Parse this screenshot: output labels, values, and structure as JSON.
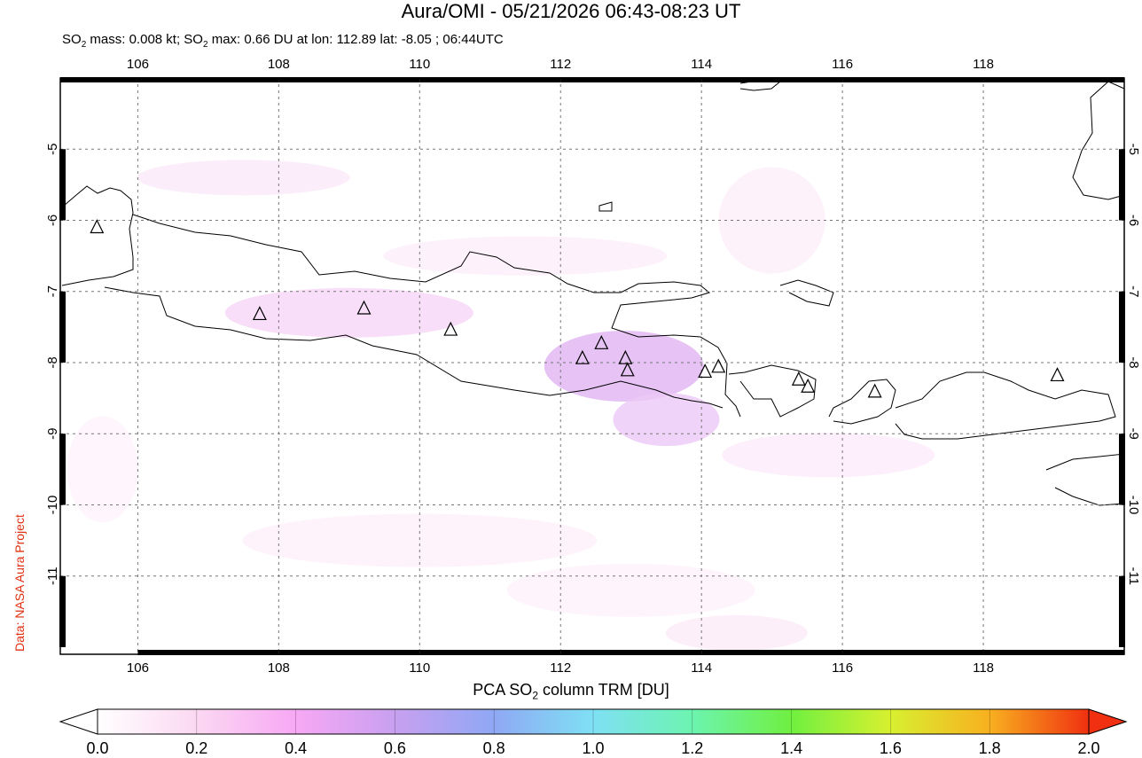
{
  "header": {
    "title": "Aura/OMI - 05/21/2026 06:43-08:23 UT",
    "subtitle_parts": [
      "SO",
      "2",
      " mass: 0.008 kt; SO",
      "2",
      " max: 0.66 DU at lon: 112.89 lat: -8.05 ; 06:44UTC"
    ]
  },
  "credit": "Data: NASA Aura Project",
  "map": {
    "lon_range": [
      104.9,
      120.0
    ],
    "lat_range": [
      -12.1,
      -4.0
    ],
    "lon_ticks": [
      "106",
      "108",
      "110",
      "112",
      "114",
      "116",
      "118"
    ],
    "lat_ticks": [
      "-5",
      "-6",
      "-7",
      "-8",
      "-9",
      "-10",
      "-11"
    ],
    "volcanoes": [
      {
        "lon": 105.42,
        "lat": -6.1
      },
      {
        "lon": 107.73,
        "lat": -7.32
      },
      {
        "lon": 109.21,
        "lat": -7.24
      },
      {
        "lon": 110.44,
        "lat": -7.54
      },
      {
        "lon": 112.31,
        "lat": -7.94
      },
      {
        "lon": 112.58,
        "lat": -7.73
      },
      {
        "lon": 112.92,
        "lat": -7.94
      },
      {
        "lon": 112.95,
        "lat": -8.11
      },
      {
        "lon": 114.05,
        "lat": -8.13
      },
      {
        "lon": 114.24,
        "lat": -8.06
      },
      {
        "lon": 115.38,
        "lat": -8.24
      },
      {
        "lon": 115.51,
        "lat": -8.34
      },
      {
        "lon": 116.46,
        "lat": -8.41
      },
      {
        "lon": 119.05,
        "lat": -8.18
      }
    ],
    "so2_max_location": {
      "lon": 112.89,
      "lat": -8.05,
      "value": 0.66
    }
  },
  "colorbar": {
    "label_parts": [
      "PCA SO",
      "2",
      " column TRM [DU]"
    ],
    "ticks": [
      "0.0",
      "0.2",
      "0.4",
      "0.6",
      "0.8",
      "1.0",
      "1.2",
      "1.4",
      "1.6",
      "1.8",
      "2.0"
    ],
    "range": [
      0.0,
      2.0
    ],
    "colors": [
      "#ffffff",
      "#fbd8f2",
      "#f7a8f4",
      "#c8a0f0",
      "#8fa8f4",
      "#7fe0f4",
      "#6cf4b0",
      "#70f040",
      "#d8f030",
      "#f8b020",
      "#f03010"
    ]
  }
}
